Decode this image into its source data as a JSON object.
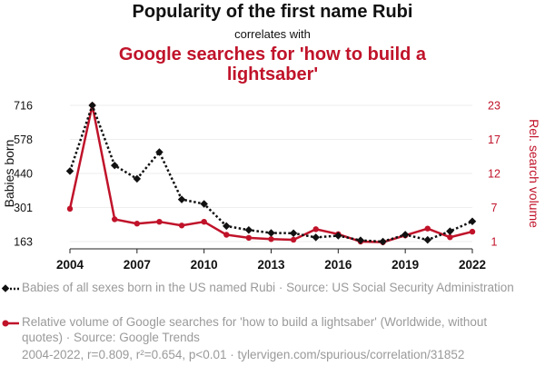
{
  "header": {
    "title": "Popularity of the first name Rubi",
    "subtitle": "correlates with",
    "title2": "Google searches for 'how to build a lightsaber'"
  },
  "legend": {
    "series1": "Babies of all sexes born in the US named Rubi · Source: US Social Security Administration",
    "series2": "Relative volume of Google searches for 'how to build a lightsaber' (Worldwide, without quotes) · Source: Google Trends"
  },
  "footer": "2004-2022, r=0.809, r²=0.654, p<0.01 · tylervigen.com/spurious/correlation/31852",
  "colors": {
    "series1": "#111111",
    "series2": "#c0132a",
    "grid": "#eeeeee"
  },
  "chart_data": {
    "type": "line",
    "x": [
      2004,
      2005,
      2006,
      2007,
      2008,
      2009,
      2010,
      2011,
      2012,
      2013,
      2014,
      2015,
      2016,
      2017,
      2018,
      2019,
      2020,
      2021,
      2022
    ],
    "x_ticks": [
      "2004",
      "2007",
      "2010",
      "2013",
      "2016",
      "2019",
      "2022"
    ],
    "ylabel_left": "Babies born",
    "ylabel_right": "Rel. search volume",
    "yticks_left": [
      "163",
      "301",
      "440",
      "578",
      "716"
    ],
    "yticks_right": [
      "1",
      "7",
      "12",
      "17",
      "23"
    ],
    "ylim_left": [
      163,
      716
    ],
    "ylim_right": [
      1,
      23
    ],
    "series": [
      {
        "name": "Babies of all sexes born in the US named Rubi",
        "axis": "left",
        "style": "dotted",
        "marker": "diamond",
        "values": [
          449,
          716,
          472,
          418,
          526,
          334,
          316,
          226,
          210,
          198,
          197,
          180,
          187,
          168,
          163,
          191,
          170,
          205,
          245
        ]
      },
      {
        "name": "Relative volume of Google searches for 'how to build a lightsaber'",
        "axis": "right",
        "style": "solid",
        "marker": "circle",
        "values": [
          6.3,
          23,
          4.6,
          3.9,
          4.2,
          3.6,
          4.2,
          2.1,
          1.6,
          1.4,
          1.3,
          3.0,
          2.2,
          1.0,
          0.9,
          2.0,
          3.1,
          1.7,
          2.6
        ]
      }
    ],
    "grid": true
  }
}
